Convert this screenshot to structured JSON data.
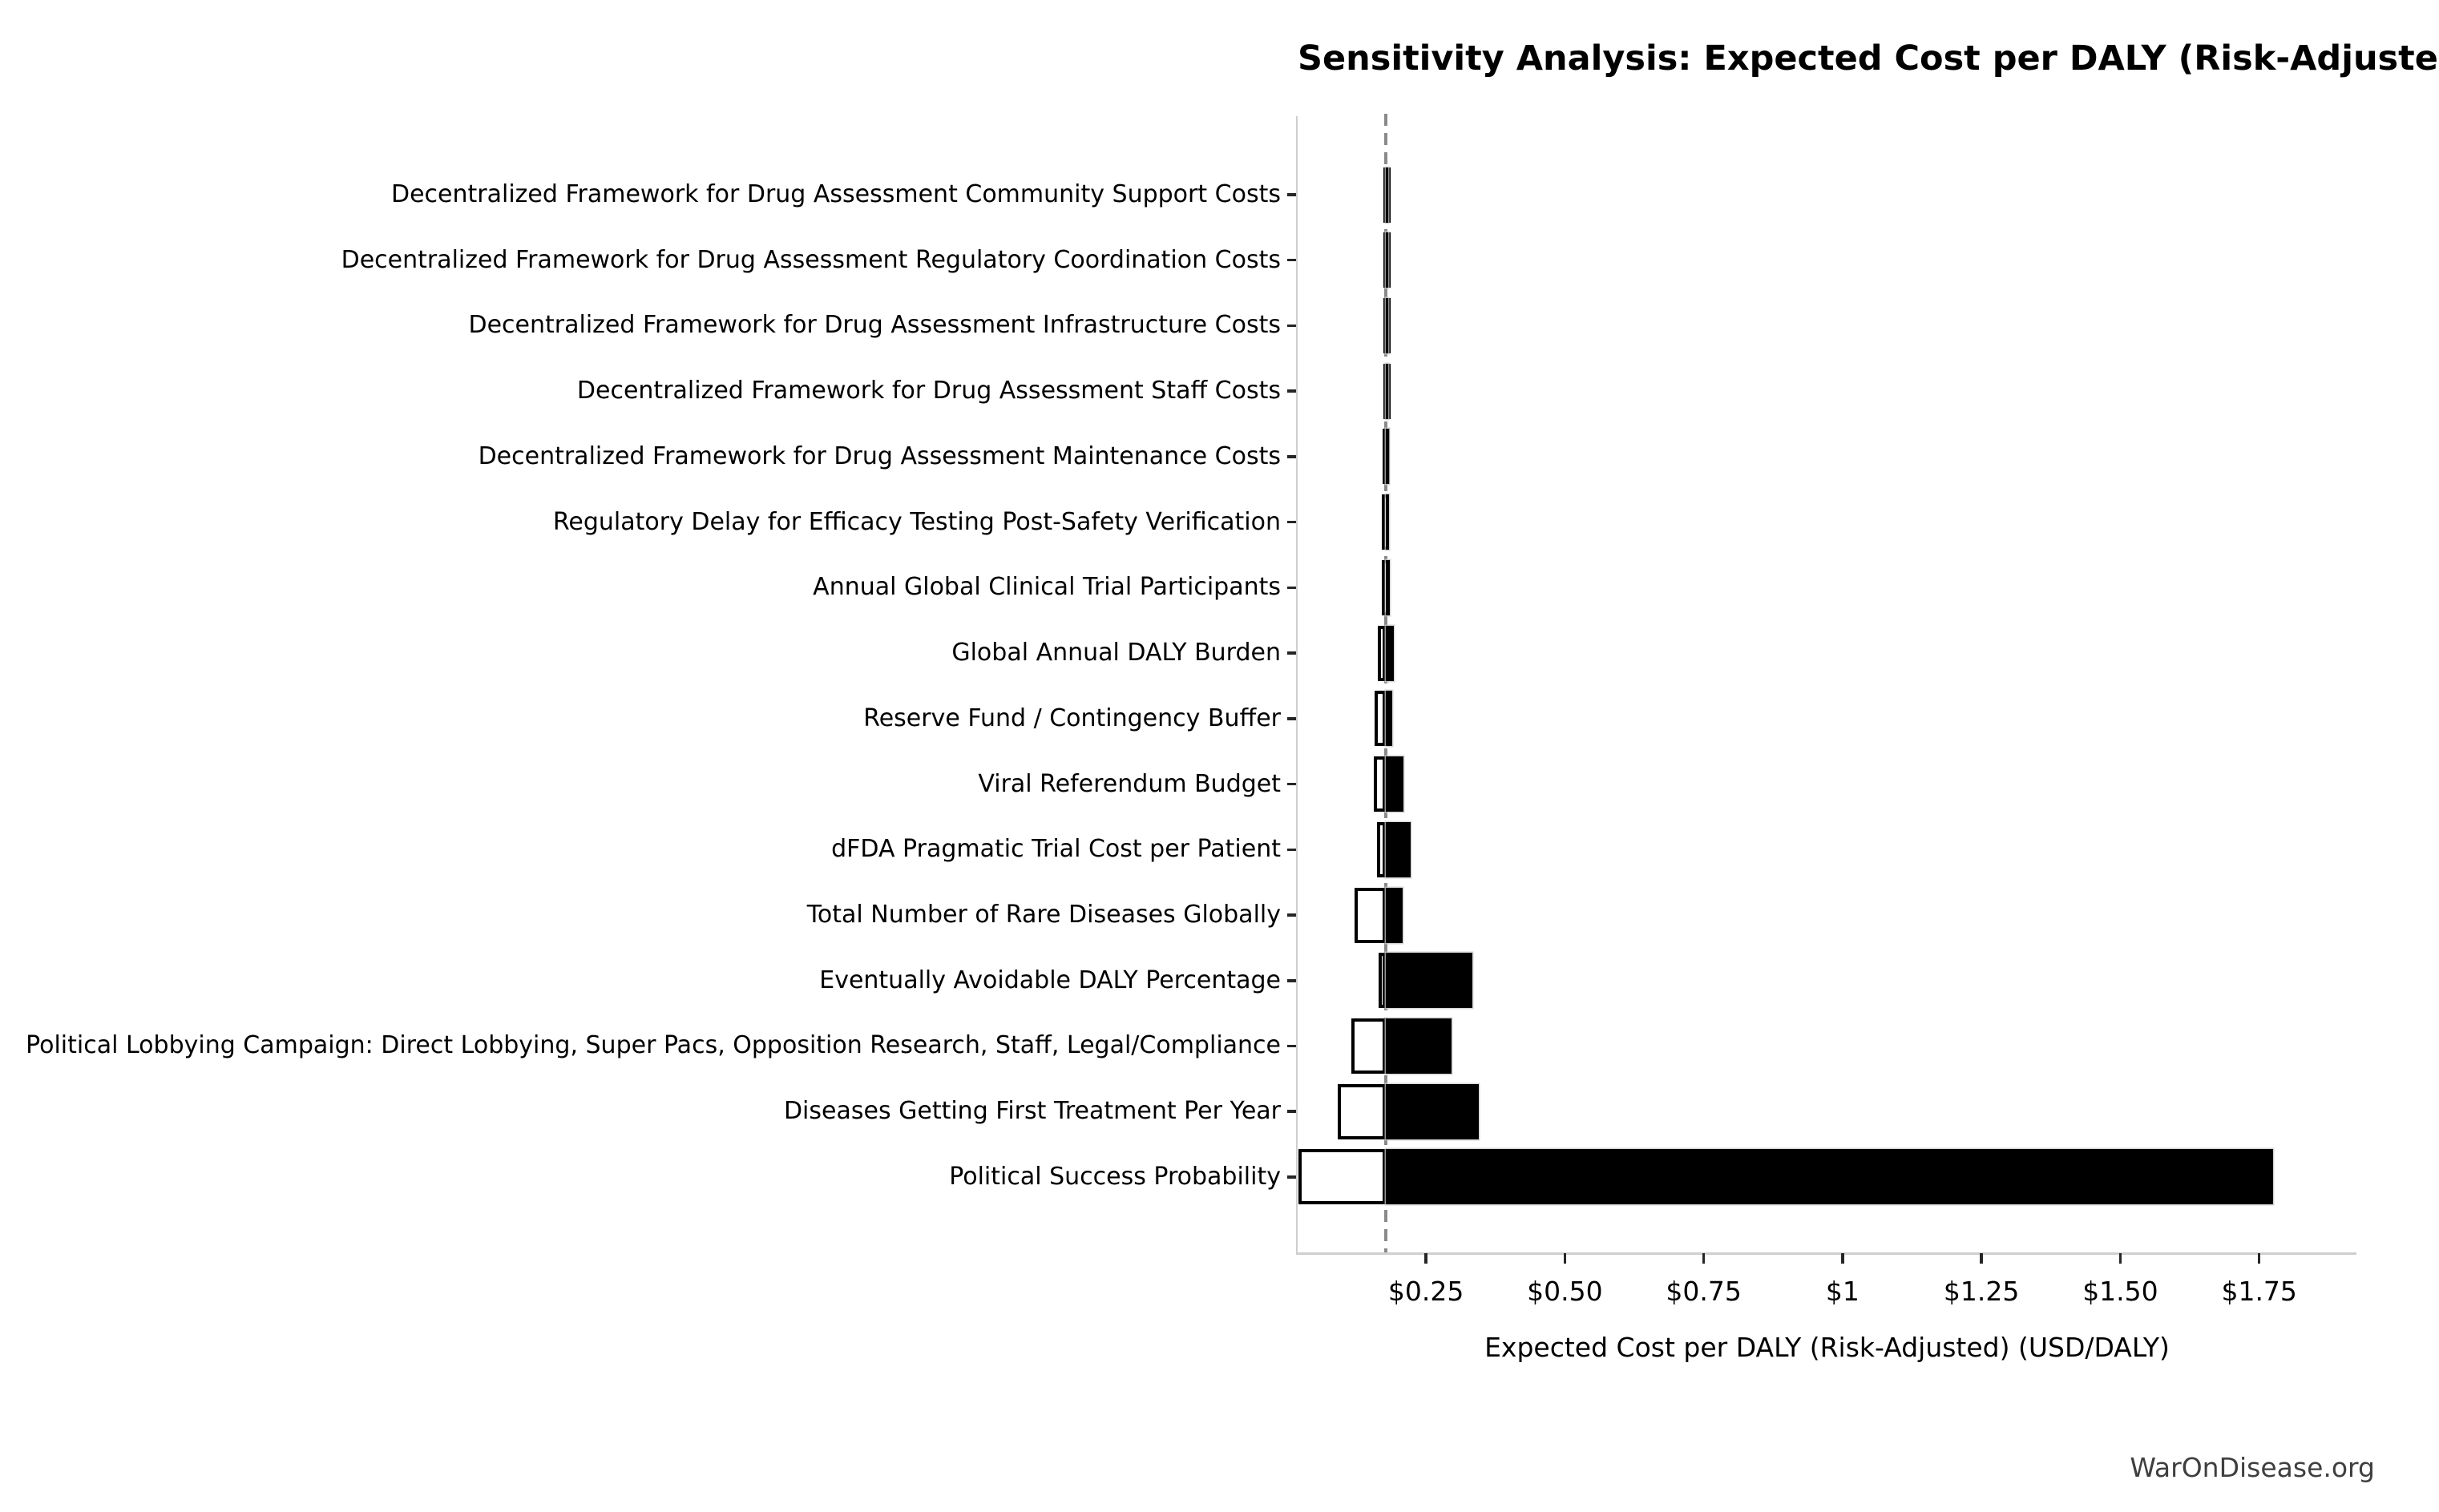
{
  "chart_data": {
    "type": "bar",
    "subtype": "tornado-sensitivity",
    "orientation": "horizontal",
    "title": "Sensitivity Analysis: Expected Cost per DALY (Risk-Adjusted)",
    "xlabel": "Expected Cost per DALY (Risk-Adjusted) (USD/DALY)",
    "watermark": "WarOnDisease.org",
    "grid": false,
    "legend": null,
    "base_value": 0.178,
    "xlim": [
      0.019,
      1.925
    ],
    "x_ticks": [
      {
        "value": 0.25,
        "label": "$0.25"
      },
      {
        "value": 0.5,
        "label": "$0.50"
      },
      {
        "value": 0.75,
        "label": "$0.75"
      },
      {
        "value": 1.0,
        "label": "$1"
      },
      {
        "value": 1.25,
        "label": "$1.25"
      },
      {
        "value": 1.5,
        "label": "$1.50"
      },
      {
        "value": 1.75,
        "label": "$1.75"
      }
    ],
    "rows": [
      {
        "label": "Decentralized Framework for Drug Assessment Community Support Costs",
        "low": 0.173,
        "high": 0.182
      },
      {
        "label": "Decentralized Framework for Drug Assessment Regulatory Coordination Costs",
        "low": 0.173,
        "high": 0.181
      },
      {
        "label": "Decentralized Framework for Drug Assessment Infrastructure Costs",
        "low": 0.173,
        "high": 0.182
      },
      {
        "label": "Decentralized Framework for Drug Assessment Staff Costs",
        "low": 0.173,
        "high": 0.182
      },
      {
        "label": "Decentralized Framework for Drug Assessment Maintenance Costs",
        "low": 0.172,
        "high": 0.183
      },
      {
        "label": "Regulatory Delay for Efficacy Testing Post-Safety Verification",
        "low": 0.171,
        "high": 0.184
      },
      {
        "label": "Annual Global Clinical Trial Participants",
        "low": 0.17,
        "high": 0.185
      },
      {
        "label": "Global Annual DALY Burden",
        "low": 0.164,
        "high": 0.192
      },
      {
        "label": "Reserve Fund / Contingency Buffer",
        "low": 0.158,
        "high": 0.189
      },
      {
        "label": "Viral Referendum Budget",
        "low": 0.156,
        "high": 0.21
      },
      {
        "label": "dFDA Pragmatic Trial Cost per Patient",
        "low": 0.162,
        "high": 0.223
      },
      {
        "label": "Total Number of Rare Diseases Globally",
        "low": 0.122,
        "high": 0.208
      },
      {
        "label": "Eventually Avoidable DALY Percentage",
        "low": 0.165,
        "high": 0.333
      },
      {
        "label": "Political Lobbying Campaign: Direct Lobbying, Super Pacs, Opposition Research, Staff, Legal/Compliance",
        "low": 0.116,
        "high": 0.296
      },
      {
        "label": "Diseases Getting First Treatment Per Year",
        "low": 0.091,
        "high": 0.345
      },
      {
        "label": "Political Success Probability",
        "low": 0.021,
        "high": 1.775
      }
    ],
    "colors": {
      "high_bar": "#000000",
      "low_bar_fill": "#ffffff",
      "low_bar_edge": "#000000",
      "baseline_dashed": "#8a8a8a",
      "spine": "#cfcfcf",
      "tick": "#262626",
      "background": "#ffffff"
    }
  }
}
